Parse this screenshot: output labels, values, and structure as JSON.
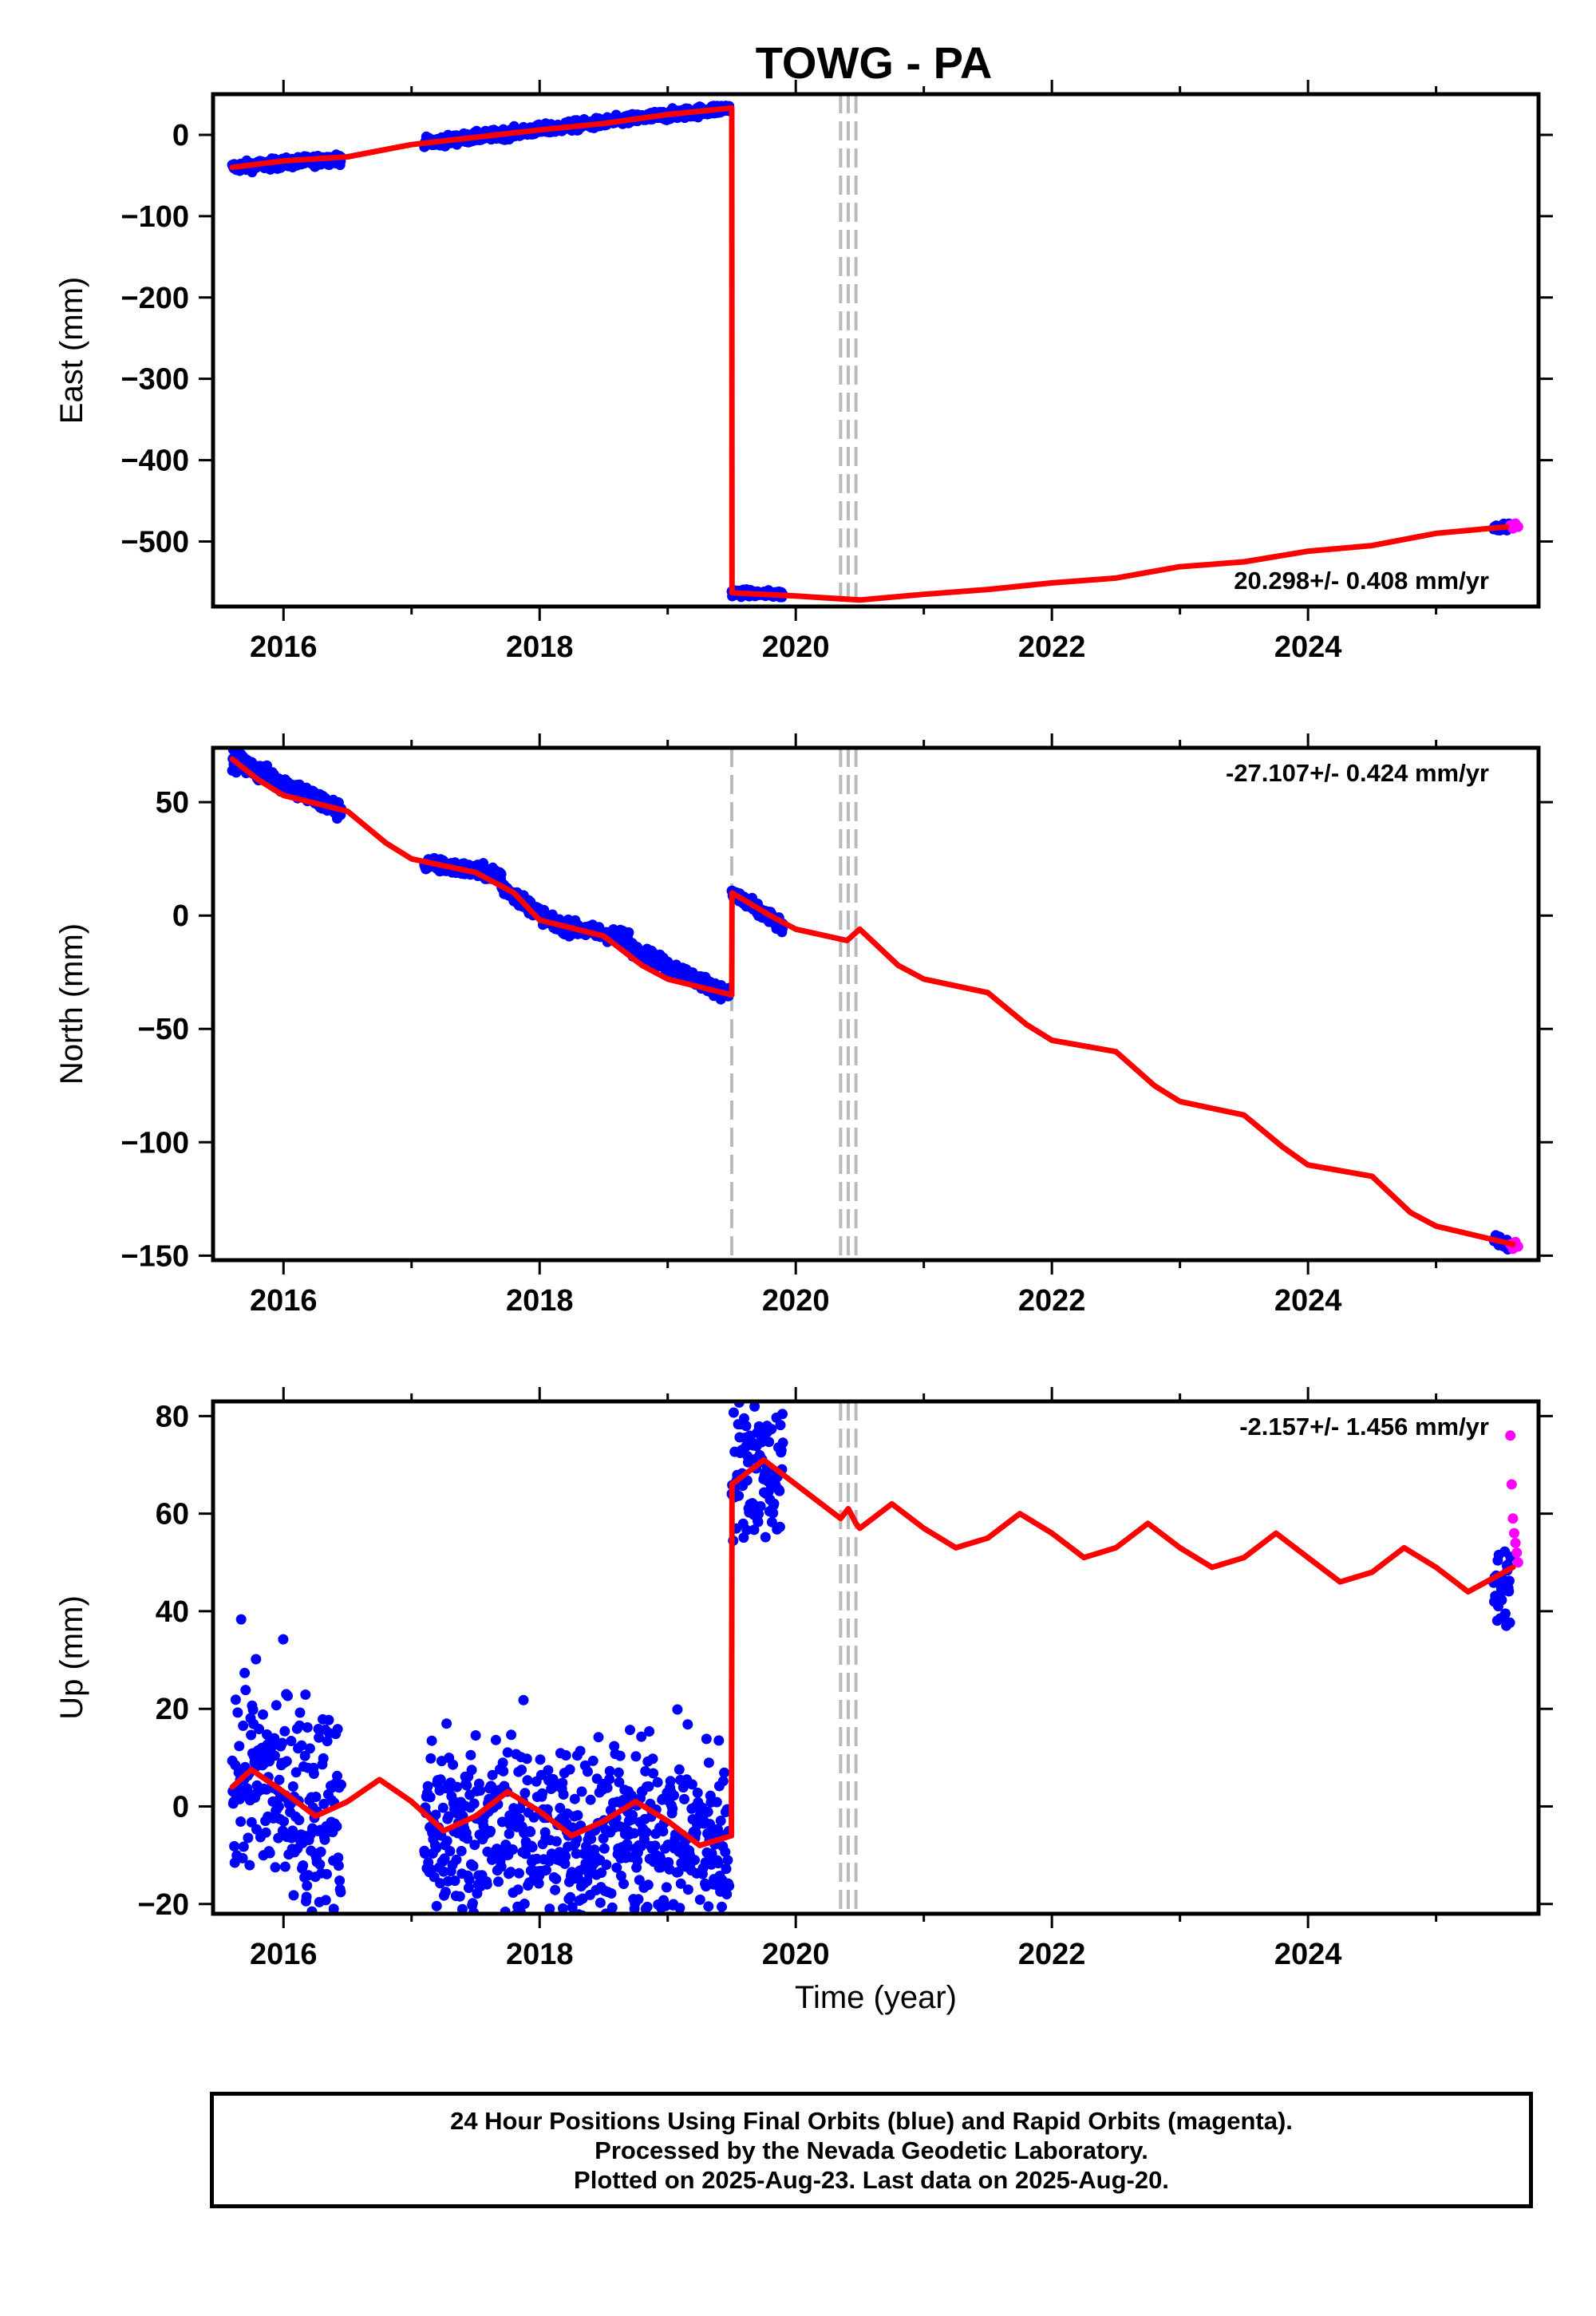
{
  "title": "TOWG - PA",
  "colors": {
    "final": "#0000ff",
    "rapid": "#ff00ff",
    "model": "#ff0000",
    "gap": "#bbbbbb",
    "frame": "#000000"
  },
  "footer": {
    "line1": "24 Hour Positions Using Final Orbits (blue) and Rapid Orbits (magenta).",
    "line2": "Processed by the Nevada Geodetic Laboratory.",
    "line3": "Plotted on 2025-Aug-23. Last data on 2025-Aug-20."
  },
  "chart_data": [
    {
      "type": "scatter",
      "id": "east",
      "ylabel": "East (mm)",
      "xlim": [
        2015.45,
        2025.8
      ],
      "ylim": [
        -580,
        50
      ],
      "xticks": [
        2016,
        2018,
        2020,
        2022,
        2024
      ],
      "yticks": [
        0,
        -100,
        -200,
        -300,
        -400,
        -500
      ],
      "ytick_labels": [
        "0",
        "−100",
        "−200",
        "−300",
        "−400",
        "−500"
      ],
      "rate_label": "20.298+/- 0.408 mm/yr",
      "rate_position": "bottom-right",
      "gap_lines": [
        2020.35,
        2020.41,
        2020.47
      ],
      "model": {
        "name": "model",
        "x": [
          2015.6,
          2016.0,
          2016.5,
          2017.0,
          2017.5,
          2018.0,
          2018.5,
          2019.0,
          2019.5,
          2019.502,
          2020.0,
          2020.5,
          2021.0,
          2021.5,
          2022.0,
          2022.5,
          2023.0,
          2023.5,
          2024.0,
          2024.5,
          2025.0,
          2025.55
        ],
        "y": [
          -40,
          -32,
          -27,
          -12,
          -3,
          6,
          14,
          25,
          33,
          -563,
          -567,
          -572,
          -565,
          -559,
          -551,
          -545,
          -531,
          -525,
          -512,
          -505,
          -490,
          -482
        ]
      },
      "final_segments": [
        {
          "x_start": 2015.6,
          "x_end": 2016.45,
          "y_start": -40,
          "y_end": -29,
          "spread": 6
        },
        {
          "x_start": 2017.1,
          "x_end": 2019.48,
          "y_start": -10,
          "y_end": 33,
          "spread": 6
        },
        {
          "x_start": 2019.5,
          "x_end": 2019.9,
          "y_start": -563,
          "y_end": -565,
          "spread": 4
        },
        {
          "x_start": 2025.45,
          "x_end": 2025.58,
          "y_start": -483,
          "y_end": -481,
          "spread": 4
        }
      ],
      "rapid_points": {
        "x": [
          2025.58,
          2025.6,
          2025.62,
          2025.64
        ],
        "y": [
          -480,
          -484,
          -478,
          -482
        ]
      }
    },
    {
      "type": "scatter",
      "id": "north",
      "ylabel": "North (mm)",
      "xlim": [
        2015.45,
        2025.8
      ],
      "ylim": [
        -152,
        74
      ],
      "xticks": [
        2016,
        2018,
        2020,
        2022,
        2024
      ],
      "yticks": [
        50,
        0,
        -50,
        -100,
        -150
      ],
      "ytick_labels": [
        "50",
        "0",
        "−50",
        "−100",
        "−150"
      ],
      "rate_label": "-27.107+/- 0.424 mm/yr",
      "rate_position": "top-right",
      "gap_lines": [
        2019.5,
        2020.35,
        2020.41,
        2020.47
      ],
      "model": {
        "name": "model",
        "x": [
          2015.6,
          2015.8,
          2016.0,
          2016.5,
          2016.8,
          2017.0,
          2017.5,
          2017.8,
          2018.0,
          2018.5,
          2018.8,
          2019.0,
          2019.5,
          2019.502,
          2019.8,
          2020.0,
          2020.4,
          2020.5,
          2020.8,
          2021.0,
          2021.5,
          2021.8,
          2022.0,
          2022.5,
          2022.8,
          2023.0,
          2023.5,
          2023.8,
          2024.0,
          2024.5,
          2024.8,
          2025.0,
          2025.6
        ],
        "y": [
          69,
          60,
          53,
          46,
          32,
          25,
          19,
          10,
          -2,
          -9,
          -22,
          -28,
          -35,
          10,
          0,
          -6,
          -11,
          -6,
          -22,
          -28,
          -34,
          -48,
          -55,
          -60,
          -75,
          -82,
          -88,
          -102,
          -110,
          -115,
          -131,
          -137,
          -145
        ]
      },
      "final_segments": [
        {
          "x_start": 2015.6,
          "x_end": 2016.45,
          "y_start": 69,
          "y_end": 46,
          "spread": 4
        },
        {
          "x_start": 2017.1,
          "x_end": 2017.7,
          "y_start": 23,
          "y_end": 18,
          "spread": 3
        },
        {
          "x_start": 2017.7,
          "x_end": 2018.1,
          "y_start": 13,
          "y_end": -3,
          "spread": 3
        },
        {
          "x_start": 2018.1,
          "x_end": 2018.7,
          "y_start": -4,
          "y_end": -10,
          "spread": 3
        },
        {
          "x_start": 2018.7,
          "x_end": 2019.48,
          "y_start": -14,
          "y_end": -35,
          "spread": 3
        },
        {
          "x_start": 2019.5,
          "x_end": 2019.9,
          "y_start": 10,
          "y_end": -5,
          "spread": 3
        },
        {
          "x_start": 2025.45,
          "x_end": 2025.58,
          "y_start": -143,
          "y_end": -145,
          "spread": 2
        }
      ],
      "rapid_points": {
        "x": [
          2025.58,
          2025.6,
          2025.62,
          2025.64
        ],
        "y": [
          -145,
          -147,
          -144,
          -146
        ]
      }
    },
    {
      "type": "scatter",
      "id": "up",
      "ylabel": "Up (mm)",
      "xlabel": "Time (year)",
      "xlim": [
        2015.45,
        2025.8
      ],
      "ylim": [
        -22,
        83
      ],
      "xticks": [
        2016,
        2018,
        2020,
        2022,
        2024
      ],
      "yticks": [
        80,
        60,
        40,
        20,
        0,
        -20
      ],
      "ytick_labels": [
        "80",
        "60",
        "40",
        "20",
        "0",
        "−20"
      ],
      "rate_label": "-2.157+/- 1.456 mm/yr",
      "rate_position": "top-right",
      "gap_lines": [
        2020.35,
        2020.41,
        2020.47
      ],
      "model": {
        "name": "model",
        "x": [
          2015.6,
          2015.75,
          2016.0,
          2016.25,
          2016.5,
          2016.75,
          2017.0,
          2017.25,
          2017.5,
          2017.75,
          2018.0,
          2018.25,
          2018.5,
          2018.75,
          2019.0,
          2019.25,
          2019.498,
          2019.502,
          2019.75,
          2020.0,
          2020.25,
          2020.35,
          2020.41,
          2020.47,
          2020.5,
          2020.75,
          2021.0,
          2021.25,
          2021.5,
          2021.75,
          2022.0,
          2022.25,
          2022.5,
          2022.75,
          2023.0,
          2023.25,
          2023.5,
          2023.75,
          2024.0,
          2024.25,
          2024.5,
          2024.75,
          2025.0,
          2025.25,
          2025.6
        ],
        "y": [
          4,
          7.5,
          3,
          -2,
          1,
          5.5,
          1,
          -5,
          -2,
          3,
          -1,
          -6,
          -3,
          1,
          -3,
          -8,
          -6,
          66,
          71,
          66,
          61,
          59,
          61,
          58,
          57,
          62,
          57,
          53,
          55,
          60,
          56,
          51,
          53,
          58,
          53,
          49,
          51,
          56,
          51,
          46,
          48,
          53,
          49,
          44,
          49
        ]
      },
      "final_segments": [
        {
          "x_start": 2015.6,
          "x_end": 2016.45,
          "y_start": 8,
          "y_end": -3,
          "spread": 22
        },
        {
          "x_start": 2017.1,
          "x_end": 2019.48,
          "y_start": -5,
          "y_end": -7,
          "spread": 20
        },
        {
          "x_start": 2019.5,
          "x_end": 2019.9,
          "y_start": 70,
          "y_end": 68,
          "spread": 14
        },
        {
          "x_start": 2025.45,
          "x_end": 2025.58,
          "y_start": 45,
          "y_end": 46,
          "spread": 9
        }
      ],
      "rapid_points": {
        "x": [
          2025.58,
          2025.59,
          2025.6,
          2025.61,
          2025.62,
          2025.63,
          2025.64
        ],
        "y": [
          76,
          66,
          59,
          56,
          54,
          52,
          50
        ]
      }
    }
  ]
}
